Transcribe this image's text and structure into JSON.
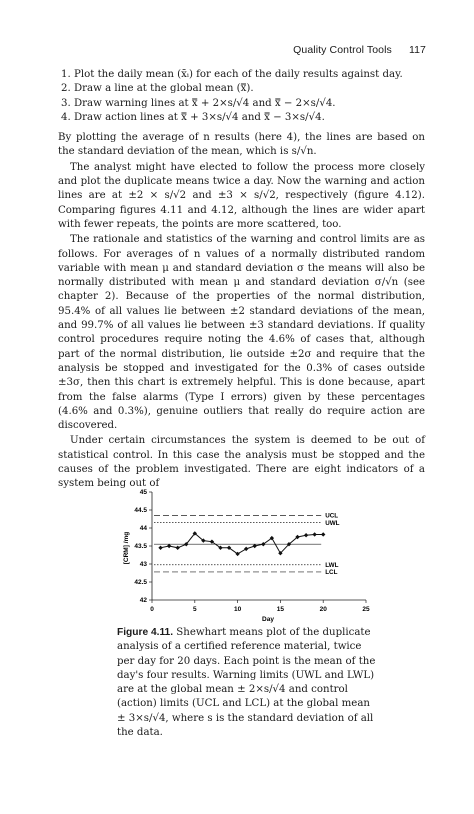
{
  "header": {
    "title": "Quality Control Tools",
    "page": "117"
  },
  "steps": [
    "Plot the daily mean (x̄ᵢ) for each of the daily results against day.",
    "Draw a line at the global mean (x̿).",
    "Draw warning lines at x̿ + 2×s/√4 and x̿ − 2×s/√4.",
    "Draw action lines at x̿ + 3×s/√4 and x̿ − 3×s/√4."
  ],
  "paragraphs": [
    "By plotting the average of n results (here 4), the lines are based on the standard deviation of the mean, which is s/√n.",
    "The analyst might have elected to follow the process more closely and plot the duplicate means twice a day. Now the warning and action lines are at ±2 × s/√2 and ±3 × s/√2, respectively (figure 4.12). Comparing figures 4.11 and 4.12, although the lines are wider apart with fewer repeats, the points are more scattered, too.",
    "The rationale and statistics of the warning and control limits are as follows. For averages of n values of a normally distributed random variable with mean μ and standard deviation σ the means will also be normally distributed with mean μ and standard deviation σ/√n (see chapter 2). Because of the properties of the normal distribution, 95.4% of all values lie between ±2 standard deviations of the mean, and 99.7% of all values lie between ±3 standard deviations. If quality control procedures require noting the 4.6% of cases that, although part of the normal distribution, lie outside ±2σ and require that the analysis be stopped and investigated for the 0.3% of cases outside ±3σ, then this chart is extremely helpful. This is done because, apart from the false alarms (Type I errors) given by these percentages (4.6% and 0.3%), genuine outliers that really do require action are discovered.",
    "Under certain circumstances the system is deemed to be out of statistical control. In this case the analysis must be stopped and the causes of the problem investigated. There are eight indicators of a system being out of"
  ],
  "caption": {
    "label": "Figure 4.11.",
    "text": " Shewhart means plot of the duplicate analysis of a certified reference material, twice per day for 20 days. Each point is the mean of the day's four results. Warning limits (UWL and LWL) are at the global mean ± 2×s/√4 and control (action) limits (UCL and LCL) at the global mean ± 3×s/√4, where s is the standard deviation of all the data."
  },
  "chart_data": {
    "type": "line",
    "xlabel": "Day",
    "ylabel": "[CRM] /mg",
    "xlim": [
      0,
      25
    ],
    "ylim": [
      42,
      45
    ],
    "xticks": [
      0,
      5,
      10,
      15,
      20,
      25
    ],
    "yticks": [
      42,
      42.5,
      43,
      43.5,
      44,
      44.5,
      45
    ],
    "x": [
      1,
      2,
      3,
      4,
      5,
      6,
      7,
      8,
      9,
      10,
      11,
      12,
      13,
      14,
      15,
      16,
      17,
      18,
      19,
      20
    ],
    "values": [
      43.45,
      43.5,
      43.45,
      43.55,
      43.85,
      43.65,
      43.62,
      43.45,
      43.45,
      43.28,
      43.42,
      43.5,
      43.55,
      43.72,
      43.3,
      43.55,
      43.75,
      43.8,
      43.82,
      43.82
    ],
    "lines": [
      {
        "name": "UCL",
        "y": 44.35,
        "style": "dashed"
      },
      {
        "name": "UWL",
        "y": 44.15,
        "style": "dotted"
      },
      {
        "name": "",
        "y": 43.55,
        "style": "solid"
      },
      {
        "name": "LWL",
        "y": 42.98,
        "style": "dotted"
      },
      {
        "name": "LCL",
        "y": 42.78,
        "style": "dashed"
      }
    ]
  }
}
